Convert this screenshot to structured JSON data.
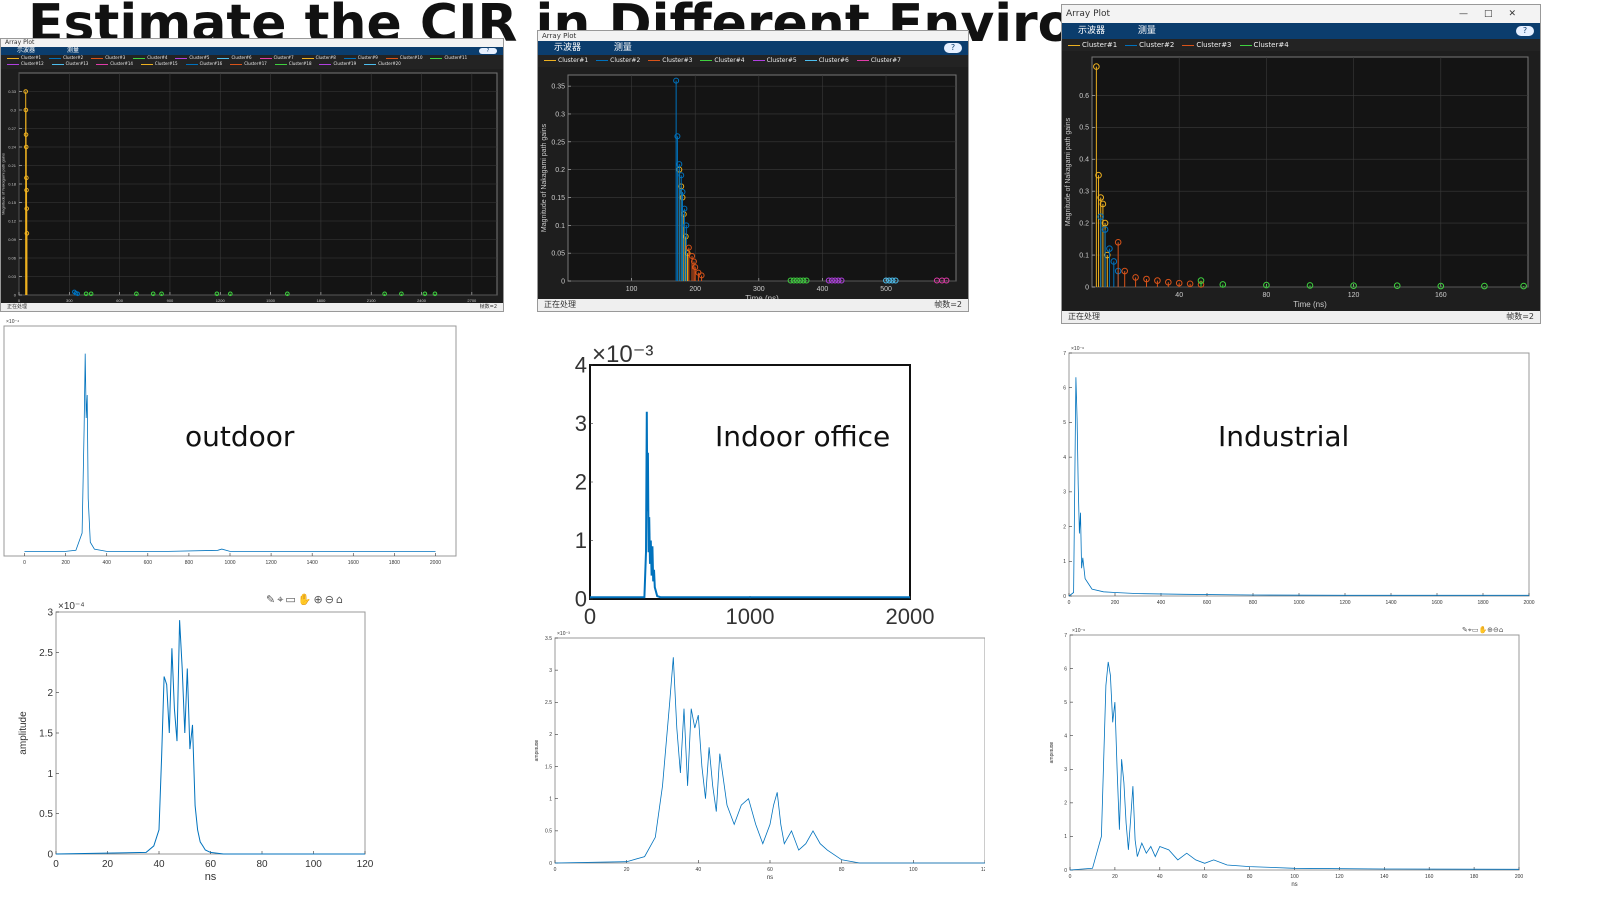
{
  "title": "Estimate the CIR in Different Environments",
  "colors": {
    "matlab_blue": "#0072bd",
    "c1": "#edb120",
    "c2": "#0072bd",
    "c3": "#d95319",
    "c4": "#3fd13f",
    "c5": "#7e2f8e",
    "c6": "#4dbeee",
    "c7": "#e03ca8"
  },
  "labels": {
    "outdoor": "outdoor",
    "indoor": "Indoor office",
    "industrial": "Industrial"
  },
  "window": {
    "title": "Array Plot",
    "menu_scope": "示波器",
    "menu_measure": "测量",
    "status_processing": "正在处理",
    "frames": "帧数=2",
    "help": "?"
  },
  "toolbar_icons": [
    "brush-icon",
    "datatip-icon",
    "restore-icon",
    "pan-icon",
    "zoom-in-icon",
    "zoom-out-icon",
    "home-icon"
  ],
  "chart_data": [
    {
      "id": "outdoor_array",
      "type": "scatter",
      "title": "",
      "xlabel": "Time (ns)",
      "ylabel": "Magnitude of Nakagami path gains",
      "xlim": [
        0,
        2850
      ],
      "ylim": [
        0,
        0.36
      ],
      "xticks": [
        0,
        300,
        600,
        900,
        1200,
        1500,
        1800,
        2100,
        2400,
        2700
      ],
      "yticks": [
        0,
        0.03,
        0.06,
        0.09,
        0.12,
        0.15,
        0.18,
        0.21,
        0.24,
        0.27,
        0.3,
        0.33
      ],
      "legend": [
        "Cluster#1",
        "Cluster#2",
        "Cluster#3",
        "Cluster#4",
        "Cluster#5",
        "Cluster#6",
        "Cluster#7",
        "Cluster#8",
        "Cluster#9",
        "Cluster#10",
        "Cluster#11",
        "Cluster#12",
        "Cluster#13",
        "Cluster#14",
        "Cluster#15",
        "Cluster#16",
        "Cluster#17",
        "Cluster#18",
        "Cluster#19",
        "Cluster#20"
      ],
      "series": [
        {
          "name": "Cluster#1",
          "color": "#edb120",
          "x": [
            40,
            41,
            42,
            43,
            44,
            45,
            46,
            47
          ],
          "y": [
            0.33,
            0.3,
            0.26,
            0.24,
            0.19,
            0.17,
            0.14,
            0.1
          ]
        },
        {
          "name": "Cluster#2",
          "color": "#0072bd",
          "x": [
            330,
            340,
            350
          ],
          "y": [
            0.005,
            0.003,
            0.002
          ]
        },
        {
          "name": "Cluster#3",
          "color": "#3fd13f",
          "x": [
            400,
            430,
            700,
            800,
            850,
            1180,
            1260,
            1600,
            2180,
            2280,
            2420,
            2480
          ],
          "y": [
            0.002,
            0.002,
            0.002,
            0.002,
            0.002,
            0.002,
            0.002,
            0.002,
            0.002,
            0.002,
            0.002,
            0.002
          ]
        }
      ]
    },
    {
      "id": "indoor_array",
      "type": "scatter",
      "title": "",
      "xlabel": "Time (ns)",
      "ylabel": "Magnitude of Nakagami path gains",
      "xlim": [
        0,
        610
      ],
      "ylim": [
        0,
        0.37
      ],
      "xticks": [
        100,
        200,
        300,
        400,
        500
      ],
      "yticks": [
        0,
        0.05,
        0.1,
        0.15,
        0.2,
        0.25,
        0.3,
        0.35
      ],
      "legend": [
        "Cluster#1",
        "Cluster#2",
        "Cluster#3",
        "Cluster#4",
        "Cluster#5",
        "Cluster#6",
        "Cluster#7"
      ],
      "series": [
        {
          "name": "Cluster#1",
          "color": "#edb120",
          "x": [
            175,
            178,
            180,
            182,
            185,
            188
          ],
          "y": [
            0.2,
            0.17,
            0.15,
            0.12,
            0.08,
            0.05
          ]
        },
        {
          "name": "Cluster#2",
          "color": "#0072bd",
          "x": [
            170,
            172,
            175,
            178,
            180,
            183,
            186
          ],
          "y": [
            0.36,
            0.26,
            0.21,
            0.19,
            0.16,
            0.13,
            0.1
          ]
        },
        {
          "name": "Cluster#3",
          "color": "#d95319",
          "x": [
            190,
            195,
            198,
            200,
            205,
            210
          ],
          "y": [
            0.06,
            0.045,
            0.035,
            0.025,
            0.015,
            0.01
          ]
        },
        {
          "name": "Cluster#4",
          "color": "#3fd13f",
          "x": [
            350,
            355,
            360,
            365,
            370,
            375
          ],
          "y": [
            0.001,
            0.001,
            0.001,
            0.001,
            0.001,
            0.001
          ]
        },
        {
          "name": "Cluster#5",
          "color": "#b040e0",
          "x": [
            410,
            415,
            420,
            425,
            430
          ],
          "y": [
            0.001,
            0.001,
            0.001,
            0.001,
            0.001
          ]
        },
        {
          "name": "Cluster#6",
          "color": "#4dbeee",
          "x": [
            500,
            505,
            510,
            515
          ],
          "y": [
            0.001,
            0.001,
            0.001,
            0.001
          ]
        },
        {
          "name": "Cluster#7",
          "color": "#e03ca8",
          "x": [
            580,
            588,
            595
          ],
          "y": [
            0.001,
            0.001,
            0.001
          ]
        }
      ]
    },
    {
      "id": "industrial_array",
      "type": "scatter",
      "title": "",
      "xlabel": "Time (ns)",
      "ylabel": "Magnitude of Nakagami path gains",
      "xlim": [
        0,
        200
      ],
      "ylim": [
        0,
        0.72
      ],
      "xticks": [
        40,
        80,
        120,
        160
      ],
      "yticks": [
        0,
        0.1,
        0.2,
        0.3,
        0.4,
        0.5,
        0.6
      ],
      "legend": [
        "Cluster#1",
        "Cluster#2",
        "Cluster#3",
        "Cluster#4"
      ],
      "series": [
        {
          "name": "Cluster#1",
          "color": "#edb120",
          "x": [
            2,
            3,
            4,
            5,
            6,
            7
          ],
          "y": [
            0.69,
            0.35,
            0.28,
            0.26,
            0.2,
            0.1
          ]
        },
        {
          "name": "Cluster#2",
          "color": "#0072bd",
          "x": [
            4,
            6,
            8,
            10,
            12
          ],
          "y": [
            0.22,
            0.18,
            0.12,
            0.08,
            0.05
          ]
        },
        {
          "name": "Cluster#3",
          "color": "#d95319",
          "x": [
            12,
            15,
            20,
            25,
            30,
            35,
            40,
            45,
            50
          ],
          "y": [
            0.14,
            0.05,
            0.03,
            0.025,
            0.02,
            0.015,
            0.012,
            0.01,
            0.008
          ]
        },
        {
          "name": "Cluster#4",
          "color": "#3fd13f",
          "x": [
            50,
            60,
            80,
            100,
            120,
            140,
            160,
            180,
            198
          ],
          "y": [
            0.02,
            0.008,
            0.006,
            0.005,
            0.004,
            0.004,
            0.003,
            0.003,
            0.003
          ]
        }
      ]
    },
    {
      "id": "outdoor_cir_full",
      "type": "line",
      "title": "",
      "xlabel": "",
      "ylabel": "",
      "scale": "×10⁻⁴",
      "xlim": [
        -100,
        2100
      ],
      "ylim": [
        0,
        1
      ],
      "xticks": [
        0,
        200,
        400,
        600,
        800,
        1000,
        1200,
        1400,
        1600,
        1800,
        2000
      ],
      "series": [
        {
          "name": "",
          "x": [
            0,
            100,
            200,
            250,
            280,
            290,
            295,
            300,
            305,
            310,
            320,
            340,
            400,
            700,
            940,
            960,
            1000,
            1400,
            2000
          ],
          "y": [
            0.02,
            0.02,
            0.02,
            0.025,
            0.1,
            0.55,
            0.88,
            0.6,
            0.7,
            0.25,
            0.06,
            0.03,
            0.02,
            0.02,
            0.025,
            0.03,
            0.02,
            0.02,
            0.02
          ]
        }
      ]
    },
    {
      "id": "indoor_cir_full",
      "type": "line",
      "title": "",
      "xlabel": "",
      "ylabel": "",
      "scale": "×10⁻³",
      "xlim": [
        0,
        2000
      ],
      "ylim": [
        0,
        4
      ],
      "xticks": [
        0,
        1000,
        2000
      ],
      "yticks": [
        0,
        1,
        2,
        3,
        4
      ],
      "series": [
        {
          "name": "",
          "x": [
            0,
            300,
            340,
            350,
            355,
            358,
            362,
            366,
            370,
            375,
            380,
            385,
            390,
            395,
            400,
            405,
            410,
            420,
            440,
            2000
          ],
          "y": [
            0.03,
            0.03,
            0.03,
            0.8,
            3.2,
            1.5,
            2.5,
            0.8,
            1.4,
            0.6,
            1.0,
            0.4,
            0.9,
            0.3,
            0.5,
            0.2,
            0.15,
            0.05,
            0.03,
            0.03
          ]
        }
      ]
    },
    {
      "id": "industrial_cir_full",
      "type": "line",
      "title": "",
      "xlabel": "",
      "ylabel": "",
      "scale": "×10⁻⁶",
      "xlim": [
        0,
        2000
      ],
      "ylim": [
        0,
        7
      ],
      "xticks": [
        0,
        200,
        400,
        600,
        800,
        1000,
        1200,
        1400,
        1600,
        1800,
        2000
      ],
      "yticks": [
        0,
        1,
        2,
        3,
        4,
        5,
        6,
        7
      ],
      "series": [
        {
          "name": "",
          "x": [
            0,
            20,
            30,
            35,
            40,
            45,
            50,
            55,
            60,
            70,
            80,
            100,
            150,
            200,
            300,
            500,
            800,
            1200,
            2000
          ],
          "y": [
            0,
            0.1,
            6.3,
            5.1,
            3.2,
            1.8,
            2.4,
            0.8,
            1.1,
            0.5,
            0.4,
            0.2,
            0.12,
            0.1,
            0.07,
            0.05,
            0.03,
            0.02,
            0.02
          ]
        }
      ]
    },
    {
      "id": "outdoor_cir_zoom",
      "type": "line",
      "title": "",
      "xlabel": "ns",
      "ylabel": "amplitude",
      "scale": "×10⁻⁴",
      "xlim": [
        0,
        120
      ],
      "ylim": [
        0,
        3
      ],
      "xticks": [
        0,
        20,
        40,
        60,
        80,
        100,
        120
      ],
      "yticks": [
        0,
        0.5,
        1,
        1.5,
        2,
        2.5,
        3
      ],
      "series": [
        {
          "name": "",
          "x": [
            0,
            35,
            38,
            40,
            41,
            42,
            43,
            44,
            45,
            46,
            47,
            48,
            49,
            50,
            51,
            52,
            53,
            54,
            55,
            56,
            57,
            58,
            60,
            65,
            120
          ],
          "y": [
            0,
            0.02,
            0.1,
            0.3,
            1.2,
            2.2,
            2.1,
            1.5,
            2.55,
            1.8,
            1.4,
            2.9,
            2.3,
            1.5,
            2.3,
            1.3,
            1.6,
            0.6,
            0.3,
            0.15,
            0.1,
            0.05,
            0.02,
            0,
            0
          ]
        }
      ]
    },
    {
      "id": "indoor_cir_zoom",
      "type": "line",
      "title": "",
      "xlabel": "ns",
      "ylabel": "amplitude",
      "scale": "×10⁻³",
      "xlim": [
        0,
        120
      ],
      "ylim": [
        0,
        3.5
      ],
      "xticks": [
        0,
        20,
        40,
        60,
        80,
        100,
        120
      ],
      "yticks": [
        0,
        0.5,
        1,
        1.5,
        2,
        2.5,
        3,
        3.5
      ],
      "series": [
        {
          "name": "",
          "x": [
            0,
            20,
            25,
            28,
            30,
            32,
            33,
            34,
            35,
            36,
            37,
            38,
            39,
            40,
            41,
            42,
            43,
            44,
            45,
            46,
            48,
            50,
            52,
            54,
            56,
            58,
            60,
            61,
            62,
            63,
            64,
            66,
            68,
            70,
            72,
            74,
            76,
            80,
            85,
            120
          ],
          "y": [
            0,
            0.02,
            0.1,
            0.4,
            1.2,
            2.5,
            3.2,
            2.1,
            1.4,
            2.4,
            1.2,
            2.4,
            2.1,
            2.3,
            1.5,
            1.0,
            1.8,
            1.2,
            0.8,
            1.7,
            0.9,
            0.6,
            0.9,
            1.0,
            0.6,
            0.3,
            0.6,
            0.9,
            1.1,
            0.6,
            0.3,
            0.5,
            0.2,
            0.3,
            0.5,
            0.3,
            0.2,
            0.05,
            0,
            0
          ]
        }
      ]
    },
    {
      "id": "industrial_cir_zoom",
      "type": "line",
      "title": "",
      "xlabel": "ns",
      "ylabel": "amplitude",
      "scale": "×10⁻⁶",
      "xlim": [
        0,
        200
      ],
      "ylim": [
        0,
        7
      ],
      "xticks": [
        0,
        20,
        40,
        60,
        80,
        100,
        120,
        140,
        160,
        180,
        200
      ],
      "yticks": [
        0,
        1,
        2,
        3,
        4,
        5,
        6,
        7
      ],
      "series": [
        {
          "name": "",
          "x": [
            0,
            10,
            14,
            16,
            17,
            18,
            19,
            20,
            21,
            22,
            23,
            24,
            25,
            26,
            27,
            28,
            29,
            30,
            32,
            34,
            36,
            38,
            40,
            44,
            48,
            52,
            56,
            60,
            64,
            70,
            80,
            100,
            140,
            200
          ],
          "y": [
            0,
            0.05,
            1,
            5.5,
            6.2,
            5.8,
            4.4,
            5.0,
            3.0,
            1.2,
            3.3,
            2.6,
            1.4,
            0.6,
            1.5,
            2.5,
            0.9,
            0.4,
            0.8,
            0.5,
            0.7,
            0.4,
            0.7,
            0.6,
            0.3,
            0.5,
            0.3,
            0.2,
            0.3,
            0.15,
            0.1,
            0.05,
            0.03,
            0.02
          ]
        }
      ]
    }
  ]
}
